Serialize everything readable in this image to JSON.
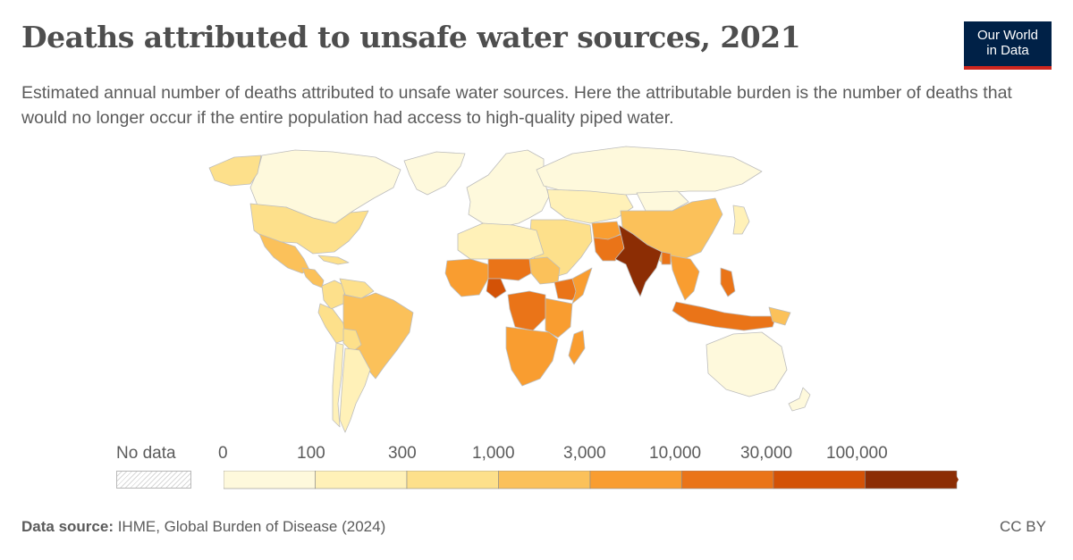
{
  "title": "Deaths attributed to unsafe water sources, 2021",
  "subtitle": "Estimated annual number of deaths attributed to unsafe water sources. Here the attributable burden is the number of deaths that would no longer occur if the entire population had access to high-quality piped water.",
  "logo": {
    "line1": "Our World",
    "line2": "in Data",
    "bg_color": "#002147",
    "accent_color": "#ce261e"
  },
  "legend": {
    "no_data_label": "No data",
    "ticks": [
      "0",
      "100",
      "300",
      "1,000",
      "3,000",
      "10,000",
      "30,000",
      "100,000"
    ],
    "colors": [
      "#fef9dc",
      "#fff1b8",
      "#fde08b",
      "#fbc15a",
      "#f99d30",
      "#ea7418",
      "#d35206",
      "#8c2d04"
    ]
  },
  "map_data": {
    "metric": "Deaths attributed to unsafe water sources",
    "year": "2021",
    "regions": [
      {
        "region": "Canada",
        "bin": 0
      },
      {
        "region": "Greenland",
        "bin": 0
      },
      {
        "region": "Alaska",
        "bin": 2
      },
      {
        "region": "United States",
        "bin": 2
      },
      {
        "region": "Mexico",
        "bin": 3
      },
      {
        "region": "Central America",
        "bin": 3
      },
      {
        "region": "Caribbean",
        "bin": 2
      },
      {
        "region": "Colombia",
        "bin": 2
      },
      {
        "region": "Venezuela",
        "bin": 2
      },
      {
        "region": "Peru",
        "bin": 2
      },
      {
        "region": "Brazil",
        "bin": 3
      },
      {
        "region": "Bolivia",
        "bin": 2
      },
      {
        "region": "Argentina",
        "bin": 1
      },
      {
        "region": "Chile",
        "bin": 1
      },
      {
        "region": "Europe",
        "bin": 0
      },
      {
        "region": "Russia",
        "bin": 0
      },
      {
        "region": "North Africa",
        "bin": 1
      },
      {
        "region": "West Africa",
        "bin": 4
      },
      {
        "region": "Nigeria",
        "bin": 6
      },
      {
        "region": "Sahel",
        "bin": 5
      },
      {
        "region": "Sudan",
        "bin": 3
      },
      {
        "region": "Ethiopia",
        "bin": 5
      },
      {
        "region": "Somalia",
        "bin": 4
      },
      {
        "region": "DR Congo",
        "bin": 5
      },
      {
        "region": "East Africa",
        "bin": 4
      },
      {
        "region": "Southern Africa",
        "bin": 4
      },
      {
        "region": "Madagascar",
        "bin": 4
      },
      {
        "region": "Middle East",
        "bin": 2
      },
      {
        "region": "Central Asia",
        "bin": 1
      },
      {
        "region": "Pakistan",
        "bin": 5
      },
      {
        "region": "Afghanistan",
        "bin": 4
      },
      {
        "region": "India",
        "bin": 7
      },
      {
        "region": "Bangladesh",
        "bin": 5
      },
      {
        "region": "China",
        "bin": 3
      },
      {
        "region": "Mongolia",
        "bin": 0
      },
      {
        "region": "Japan",
        "bin": 1
      },
      {
        "region": "Southeast Asia",
        "bin": 4
      },
      {
        "region": "Philippines",
        "bin": 5
      },
      {
        "region": "Indonesia",
        "bin": 5
      },
      {
        "region": "Papua New Guinea",
        "bin": 3
      },
      {
        "region": "Australia",
        "bin": 0
      },
      {
        "region": "New Zealand",
        "bin": 0
      }
    ]
  },
  "footer": {
    "source_label": "Data source:",
    "source_text": " IHME, Global Burden of Disease (2024)",
    "license": "CC BY"
  }
}
